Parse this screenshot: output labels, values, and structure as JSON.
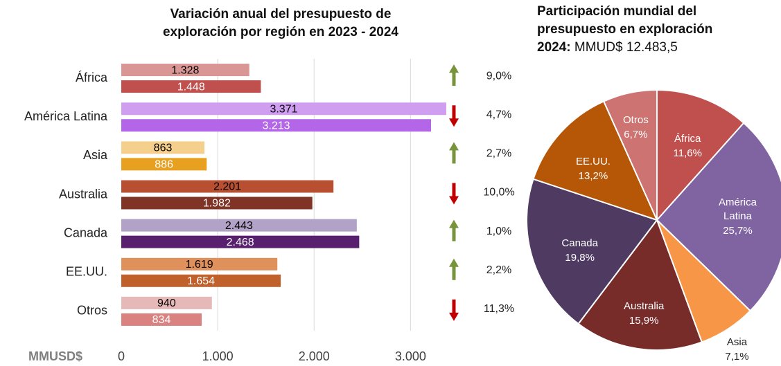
{
  "chart_data": [
    {
      "type": "hbar",
      "title": "Variación anual del presupuesto de exploración por región en 2023 - 2024",
      "categories": [
        "África",
        "América Latina",
        "Asia",
        "Australia",
        "Canada",
        "EE.UU.",
        "Otros"
      ],
      "series": [
        {
          "colors": [
            "#d99694",
            "#cf9ef0",
            "#f5d08c",
            "#b84f30",
            "#b3a2c7",
            "#e0905a",
            "#e6b8b7"
          ],
          "values": [
            1328,
            3371,
            863,
            2201,
            2443,
            1619,
            940
          ],
          "value_labels": [
            "1.328",
            "3.371",
            "863",
            "2.201",
            "2.443",
            "1.619",
            "940"
          ]
        },
        {
          "colors": [
            "#c0504d",
            "#b366e8",
            "#e8a020",
            "#7f3425",
            "#5a2070",
            "#c0602a",
            "#d9827f"
          ],
          "values": [
            1448,
            3213,
            886,
            1982,
            2468,
            1654,
            834
          ],
          "value_labels": [
            "1.448",
            "3.213",
            "886",
            "1.982",
            "2.468",
            "1.654",
            "834"
          ]
        }
      ],
      "changes": {
        "values": [
          9.0,
          -4.7,
          2.7,
          -10.0,
          1.0,
          2.2,
          -11.3
        ],
        "value_labels": [
          "9,0%",
          "4,7%",
          "2,7%",
          "10,0%",
          "1,0%",
          "2,2%",
          "11,3%"
        ],
        "up_color": "#77933c",
        "down_color": "#c00000"
      },
      "x_label": "MMUSD$",
      "xlim": [
        0,
        3400
      ],
      "xticks": [
        0,
        {
          "value": 1000,
          "label": "1.000"
        },
        {
          "value": 2000,
          "label": "2.000"
        },
        {
          "value": 3000,
          "label": "3.000"
        }
      ],
      "grid": true
    },
    {
      "type": "pie",
      "title": "Participación mundial del presupuesto en exploración",
      "subtitle_label": "2024:",
      "subtitle": "MMUD$ 12.483,5",
      "categories": [
        "África",
        "América Latina",
        "Asia",
        "Australia",
        "Canada",
        "EE.UU.",
        "Otros"
      ],
      "values": [
        11.6,
        25.7,
        7.1,
        15.9,
        19.8,
        13.2,
        6.7
      ],
      "value_labels": [
        "11,6%",
        "25,7%",
        "7,1%",
        "15,9%",
        "19,8%",
        "13,2%",
        "6,7%"
      ],
      "colors": [
        "#c0504d",
        "#8064a2",
        "#f79646",
        "#772c2a",
        "#4f3b62",
        "#b65708",
        "#cd7371"
      ]
    }
  ]
}
